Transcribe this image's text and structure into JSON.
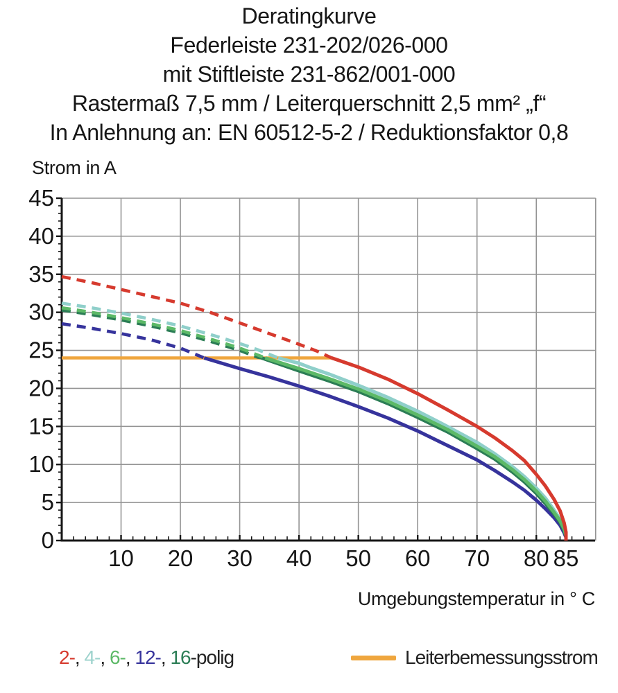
{
  "title": {
    "line1": "Deratingkurve",
    "line2": "Federleiste 231-202/026-000",
    "line3": "mit Stiftleiste 231-862/001-000",
    "line4": "Rastermaß 7,5 mm / Leiterquerschnitt 2,5 mm² „f“",
    "line5": "In Anlehnung an: EN 60512-5-2 / Reduktionsfaktor 0,8"
  },
  "axes": {
    "y_title": "Strom in A",
    "x_title": "Umgebungstemperatur in ° C"
  },
  "legend": {
    "poles": [
      {
        "text": "2-",
        "color": "#d63a2e"
      },
      {
        "text": ", ",
        "color": "#222222"
      },
      {
        "text": "4-",
        "color": "#9ed3cd"
      },
      {
        "text": ", ",
        "color": "#222222"
      },
      {
        "text": "6-",
        "color": "#5cb967"
      },
      {
        "text": ", ",
        "color": "#222222"
      },
      {
        "text": "12-",
        "color": "#36339c"
      },
      {
        "text": ", ",
        "color": "#222222"
      },
      {
        "text": "16",
        "color": "#2b7d55"
      },
      {
        "text": "-polig",
        "color": "#222222"
      }
    ],
    "rated_current_label": "Leiterbemessungsstrom",
    "rated_current_color": "#efa63e"
  },
  "colors": {
    "grid": "#949494",
    "axis": "#161616",
    "text": "#161616"
  },
  "chart_data": {
    "type": "line",
    "title": "Deratingkurve",
    "xlabel": "Umgebungstemperatur in °C",
    "ylabel": "Strom in A",
    "xlim": [
      0,
      90
    ],
    "ylim": [
      0,
      45
    ],
    "grid": true,
    "legend_position": "bottom",
    "x_major_ticks": [
      10,
      20,
      30,
      40,
      50,
      60,
      70,
      80,
      85
    ],
    "y_major_ticks": [
      0,
      5,
      10,
      15,
      20,
      25,
      30,
      35,
      40,
      45
    ],
    "x_gridlines": [
      10,
      20,
      30,
      40,
      50,
      60,
      70,
      80,
      90
    ],
    "y_gridlines": [
      5,
      10,
      15,
      20,
      25,
      30,
      35,
      40,
      45
    ],
    "x_minor_step": 2,
    "y_minor_step": 1,
    "rated_current": {
      "name": "Leiterbemessungsstrom",
      "value": 24,
      "x_start": 0,
      "x_end": 45.5,
      "color": "#efa63e"
    },
    "series": [
      {
        "name": "2-polig",
        "color": "#d63a2e",
        "dashed": [
          [
            0,
            34.7
          ],
          [
            5,
            33.9
          ],
          [
            10,
            33.0
          ],
          [
            15,
            32.1
          ],
          [
            20,
            31.2
          ],
          [
            25,
            30.0
          ],
          [
            30,
            28.6
          ],
          [
            35,
            27.2
          ],
          [
            40,
            25.8
          ],
          [
            43,
            24.9
          ],
          [
            45.5,
            24
          ]
        ],
        "solid": [
          [
            45.5,
            24
          ],
          [
            50,
            22.8
          ],
          [
            55,
            21.2
          ],
          [
            60,
            19.3
          ],
          [
            65,
            17.2
          ],
          [
            70,
            15.0
          ],
          [
            73,
            13.5
          ],
          [
            76,
            11.8
          ],
          [
            78,
            10.5
          ],
          [
            80,
            8.7
          ],
          [
            81.5,
            7.2
          ],
          [
            83,
            5.4
          ],
          [
            84,
            3.9
          ],
          [
            84.7,
            2.3
          ],
          [
            85,
            1.1
          ],
          [
            85,
            0
          ]
        ]
      },
      {
        "name": "4-polig",
        "color": "#8fcfca",
        "dashed": [
          [
            0,
            31.2
          ],
          [
            5,
            30.6
          ],
          [
            10,
            29.9
          ],
          [
            15,
            29.1
          ],
          [
            20,
            28.2
          ],
          [
            25,
            27.1
          ],
          [
            30,
            25.9
          ],
          [
            33,
            25.1
          ],
          [
            36.5,
            24
          ]
        ],
        "solid": [
          [
            36.5,
            24
          ],
          [
            40,
            23.3
          ],
          [
            42,
            22.7
          ],
          [
            45,
            21.9
          ],
          [
            50,
            20.4
          ],
          [
            55,
            18.8
          ],
          [
            60,
            17.0
          ],
          [
            65,
            15.0
          ],
          [
            70,
            12.9
          ],
          [
            73,
            11.4
          ],
          [
            76,
            9.7
          ],
          [
            78,
            8.4
          ],
          [
            80,
            6.9
          ],
          [
            81.5,
            5.6
          ],
          [
            83,
            4.0
          ],
          [
            84,
            2.8
          ],
          [
            84.7,
            1.6
          ],
          [
            85,
            0.8
          ],
          [
            85,
            0
          ]
        ]
      },
      {
        "name": "6-polig",
        "color": "#5cb967",
        "dashed": [
          [
            0,
            30.6
          ],
          [
            5,
            30.0
          ],
          [
            10,
            29.3
          ],
          [
            15,
            28.5
          ],
          [
            20,
            27.6
          ],
          [
            25,
            26.5
          ],
          [
            30,
            25.3
          ],
          [
            33,
            24.4
          ],
          [
            34.3,
            24
          ]
        ],
        "solid": [
          [
            34.3,
            24
          ],
          [
            40,
            22.6
          ],
          [
            45,
            21.3
          ],
          [
            50,
            19.9
          ],
          [
            55,
            18.3
          ],
          [
            60,
            16.5
          ],
          [
            65,
            14.6
          ],
          [
            70,
            12.4
          ],
          [
            73,
            11.0
          ],
          [
            76,
            9.3
          ],
          [
            78,
            8.0
          ],
          [
            80,
            6.5
          ],
          [
            81.5,
            5.2
          ],
          [
            83,
            3.7
          ],
          [
            84,
            2.6
          ],
          [
            84.7,
            1.5
          ],
          [
            85,
            0.7
          ],
          [
            85,
            0
          ]
        ]
      },
      {
        "name": "12-polig",
        "color": "#36339c",
        "dashed": [
          [
            0,
            28.5
          ],
          [
            5,
            27.9
          ],
          [
            10,
            27.2
          ],
          [
            15,
            26.4
          ],
          [
            20,
            25.3
          ],
          [
            24,
            24
          ]
        ],
        "solid": [
          [
            24,
            24
          ],
          [
            30,
            22.6
          ],
          [
            35,
            21.5
          ],
          [
            40,
            20.3
          ],
          [
            45,
            19.0
          ],
          [
            50,
            17.6
          ],
          [
            55,
            16.1
          ],
          [
            60,
            14.4
          ],
          [
            65,
            12.5
          ],
          [
            70,
            10.6
          ],
          [
            73,
            9.2
          ],
          [
            76,
            7.7
          ],
          [
            78,
            6.6
          ],
          [
            80,
            5.3
          ],
          [
            81.5,
            4.2
          ],
          [
            83,
            3.0
          ],
          [
            84,
            2.0
          ],
          [
            84.7,
            1.0
          ],
          [
            85,
            0.4
          ],
          [
            85,
            0
          ]
        ]
      },
      {
        "name": "16-polig",
        "color": "#2b7d55",
        "dashed": [
          [
            0,
            30.3
          ],
          [
            5,
            29.7
          ],
          [
            10,
            29.0
          ],
          [
            15,
            28.2
          ],
          [
            20,
            27.3
          ],
          [
            25,
            26.2
          ],
          [
            30,
            25.0
          ],
          [
            33,
            24.1
          ],
          [
            33.7,
            24
          ]
        ],
        "solid": [
          [
            33.7,
            24
          ],
          [
            40,
            22.3
          ],
          [
            45,
            21.0
          ],
          [
            50,
            19.6
          ],
          [
            55,
            18.0
          ],
          [
            60,
            16.2
          ],
          [
            65,
            14.3
          ],
          [
            70,
            12.1
          ],
          [
            73,
            10.7
          ],
          [
            76,
            9.0
          ],
          [
            78,
            7.7
          ],
          [
            80,
            6.2
          ],
          [
            81.5,
            4.9
          ],
          [
            83,
            3.5
          ],
          [
            84,
            2.4
          ],
          [
            84.7,
            1.3
          ],
          [
            85,
            0.5
          ],
          [
            85,
            0
          ]
        ]
      }
    ]
  }
}
